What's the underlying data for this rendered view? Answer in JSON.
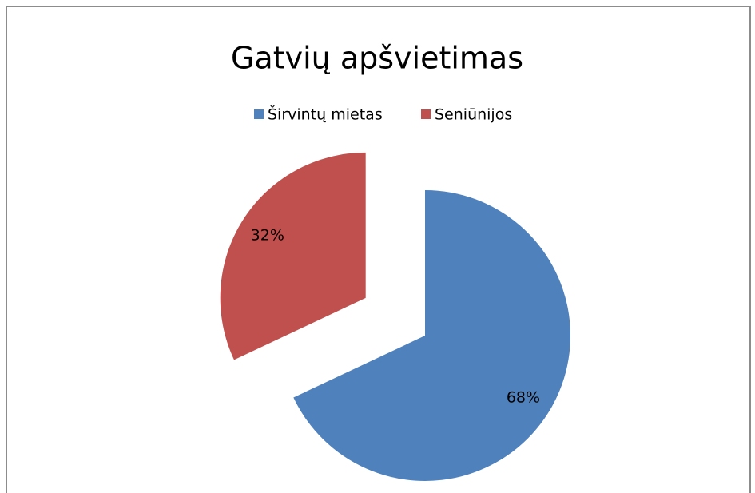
{
  "chart_data": {
    "type": "pie",
    "title": "Gatvių apšvietimas",
    "categories": [
      "Širvintų mietas",
      "Seniūnijos"
    ],
    "values": [
      68,
      32
    ],
    "value_labels": [
      "68%",
      "32%"
    ],
    "colors": [
      "#4f81bd",
      "#c0504d"
    ],
    "legend": "top"
  }
}
